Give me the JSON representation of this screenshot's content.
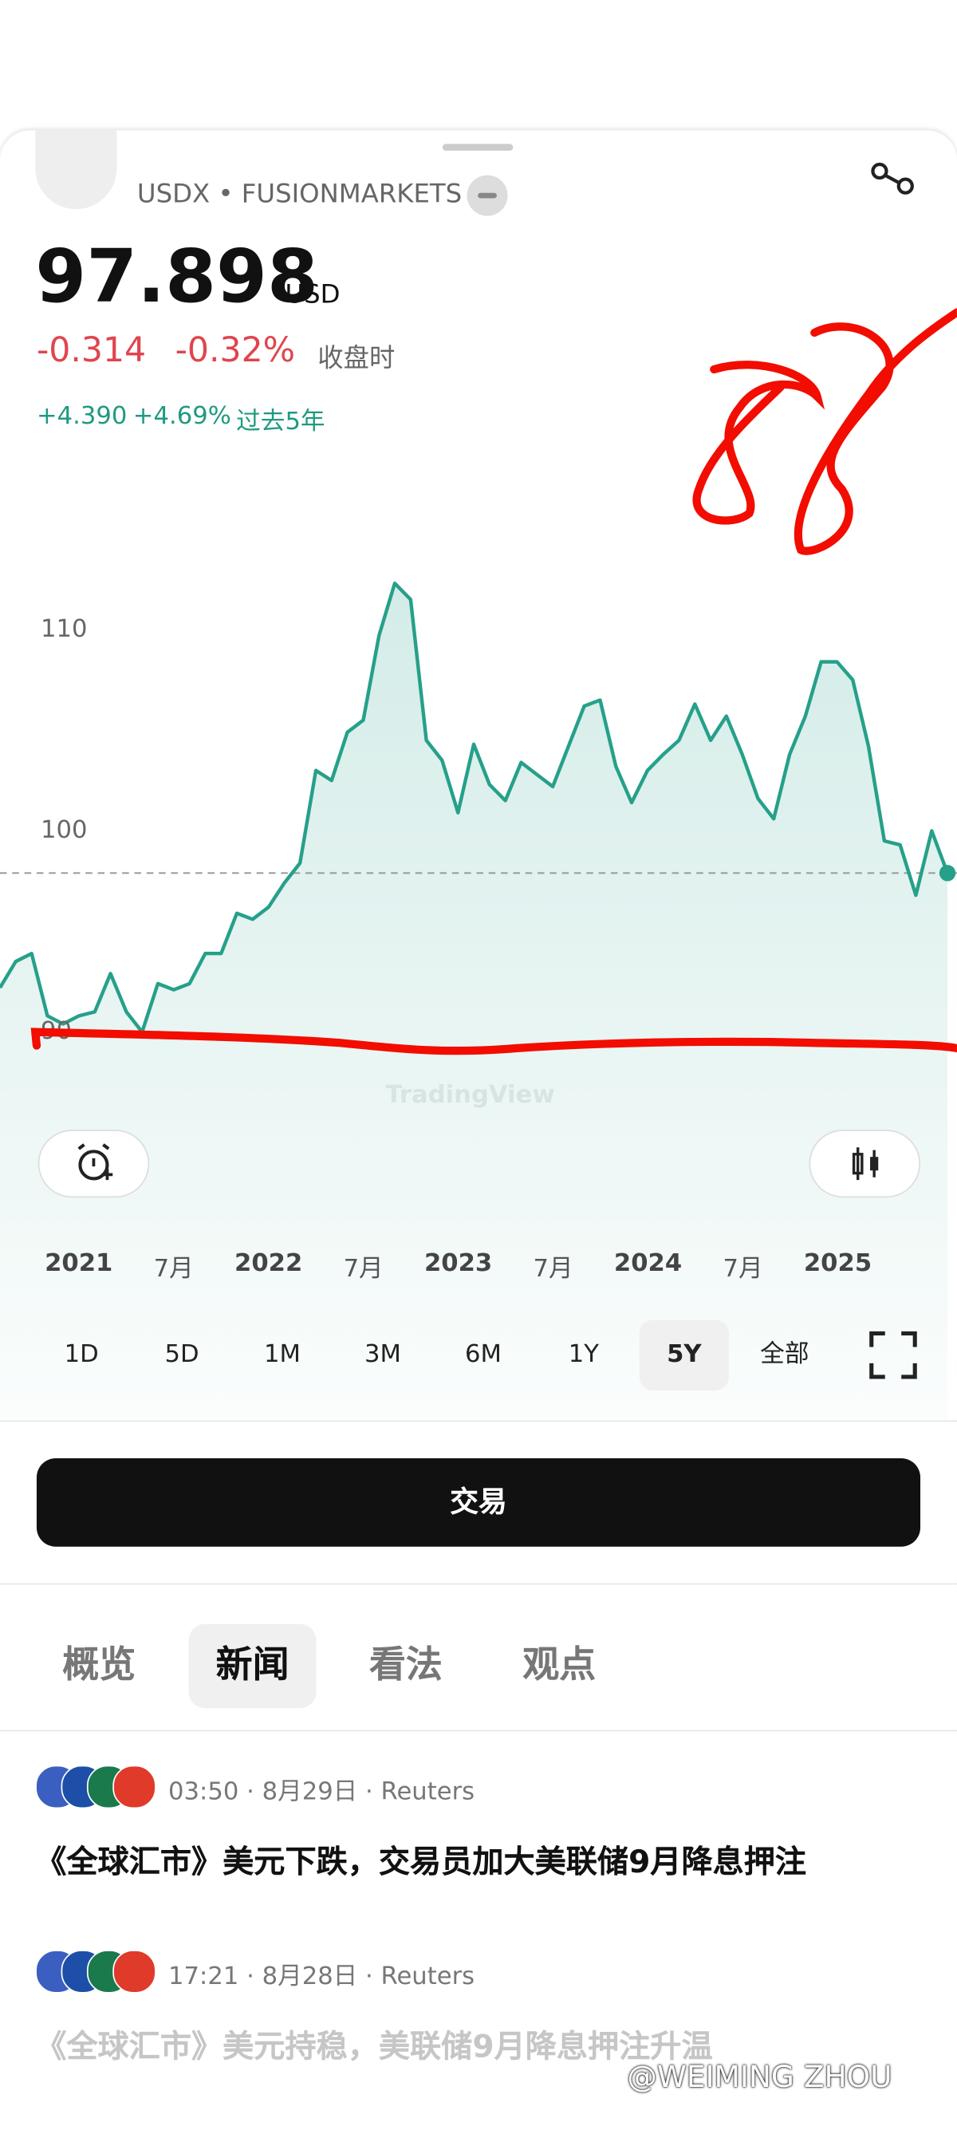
{
  "header": {
    "title": "USDX • FUSIONMARKETS"
  },
  "quote": {
    "price": "97.898",
    "currency": "USD",
    "change": "-0.314",
    "change_pct": "-0.32%",
    "session": "收盘时",
    "period_change": "+4.390",
    "period_change_pct": "+4.69%",
    "period": "过去5年"
  },
  "chart_data": {
    "type": "line",
    "color": "#26a08a",
    "values": [
      92.2,
      93.5,
      93.9,
      90.8,
      90.4,
      90.8,
      91.0,
      92.9,
      91.0,
      90.0,
      92.4,
      92.1,
      92.4,
      93.9,
      93.9,
      95.9,
      95.6,
      96.2,
      97.4,
      98.4,
      103.0,
      102.5,
      104.9,
      105.5,
      109.7,
      112.3,
      111.5,
      104.5,
      103.5,
      100.9,
      104.3,
      102.3,
      101.5,
      103.4,
      102.8,
      102.2,
      104.2,
      106.2,
      106.5,
      103.2,
      101.4,
      103.0,
      103.8,
      104.5,
      106.3,
      104.5,
      105.7,
      103.8,
      101.6,
      100.6,
      103.8,
      105.7,
      108.4,
      108.4,
      107.5,
      104.2,
      99.5,
      99.3,
      96.8,
      100.0,
      97.9
    ],
    "ylim": [
      87.3,
      114.3
    ],
    "yticks": [
      90,
      100,
      110
    ],
    "grid": false,
    "price_line": 97.9,
    "x_labels": [
      "2021",
      "7月",
      "2022",
      "7月",
      "2023",
      "7月",
      "2024",
      "7月",
      "2025"
    ],
    "watermark": "TradingView"
  },
  "ranges": [
    "1D",
    "5D",
    "1M",
    "3M",
    "6M",
    "1Y",
    "5Y",
    "全部"
  ],
  "selected_range": 6,
  "trade_button": "交易",
  "tabs": [
    "概览",
    "新闻",
    "看法",
    "观点"
  ],
  "selected_tab": 1,
  "news": [
    {
      "meta": "03:50 · 8月29日 · Reuters",
      "headline": "《全球汇市》美元下跌，交易员加大美联储9月降息押注"
    },
    {
      "meta": "17:21 · 8月28日 · Reuters",
      "headline": "《全球汇市》美元持稳，美联储9月降息押注升温"
    }
  ],
  "watermark": "@WEIMING ZHOU"
}
